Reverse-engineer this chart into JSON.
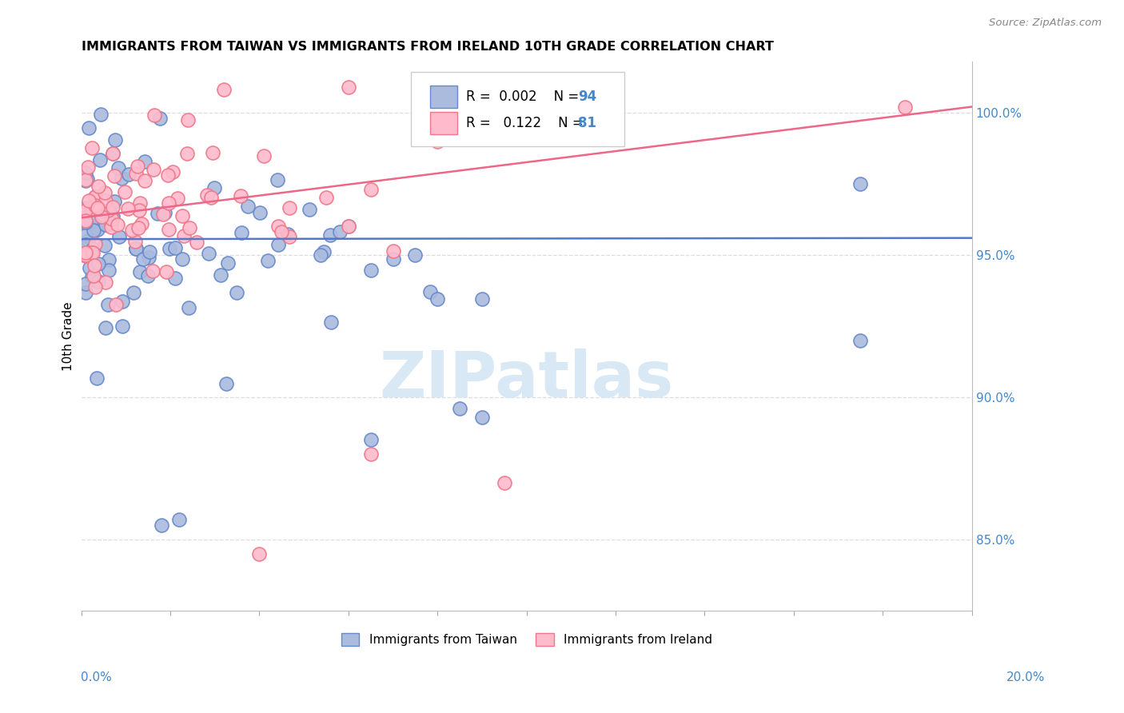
{
  "title": "IMMIGRANTS FROM TAIWAN VS IMMIGRANTS FROM IRELAND 10TH GRADE CORRELATION CHART",
  "source": "Source: ZipAtlas.com",
  "ylabel": "10th Grade",
  "y_ticks": [
    0.85,
    0.9,
    0.95,
    1.0
  ],
  "y_tick_labels": [
    "85.0%",
    "90.0%",
    "95.0%",
    "100.0%"
  ],
  "x_lim": [
    0.0,
    0.2
  ],
  "y_lim": [
    0.825,
    1.018
  ],
  "color_taiwan": "#aabbdd",
  "color_taiwan_edge": "#6688cc",
  "color_ireland": "#ffbbcc",
  "color_ireland_edge": "#ee7788",
  "color_taiwan_line": "#5577cc",
  "color_ireland_line": "#ee6688",
  "taiwan_trend_intercept": 0.9555,
  "taiwan_trend_slope": 0.002,
  "ireland_trend_intercept": 0.963,
  "ireland_trend_slope": 0.195,
  "legend_color_r": "#4488cc",
  "legend_color_n": "#cc3333",
  "watermark_color": "#d8e8f5",
  "grid_color": "#dddddd",
  "bottom_legend_labels": [
    "Immigrants from Taiwan",
    "Immigrants from Ireland"
  ]
}
